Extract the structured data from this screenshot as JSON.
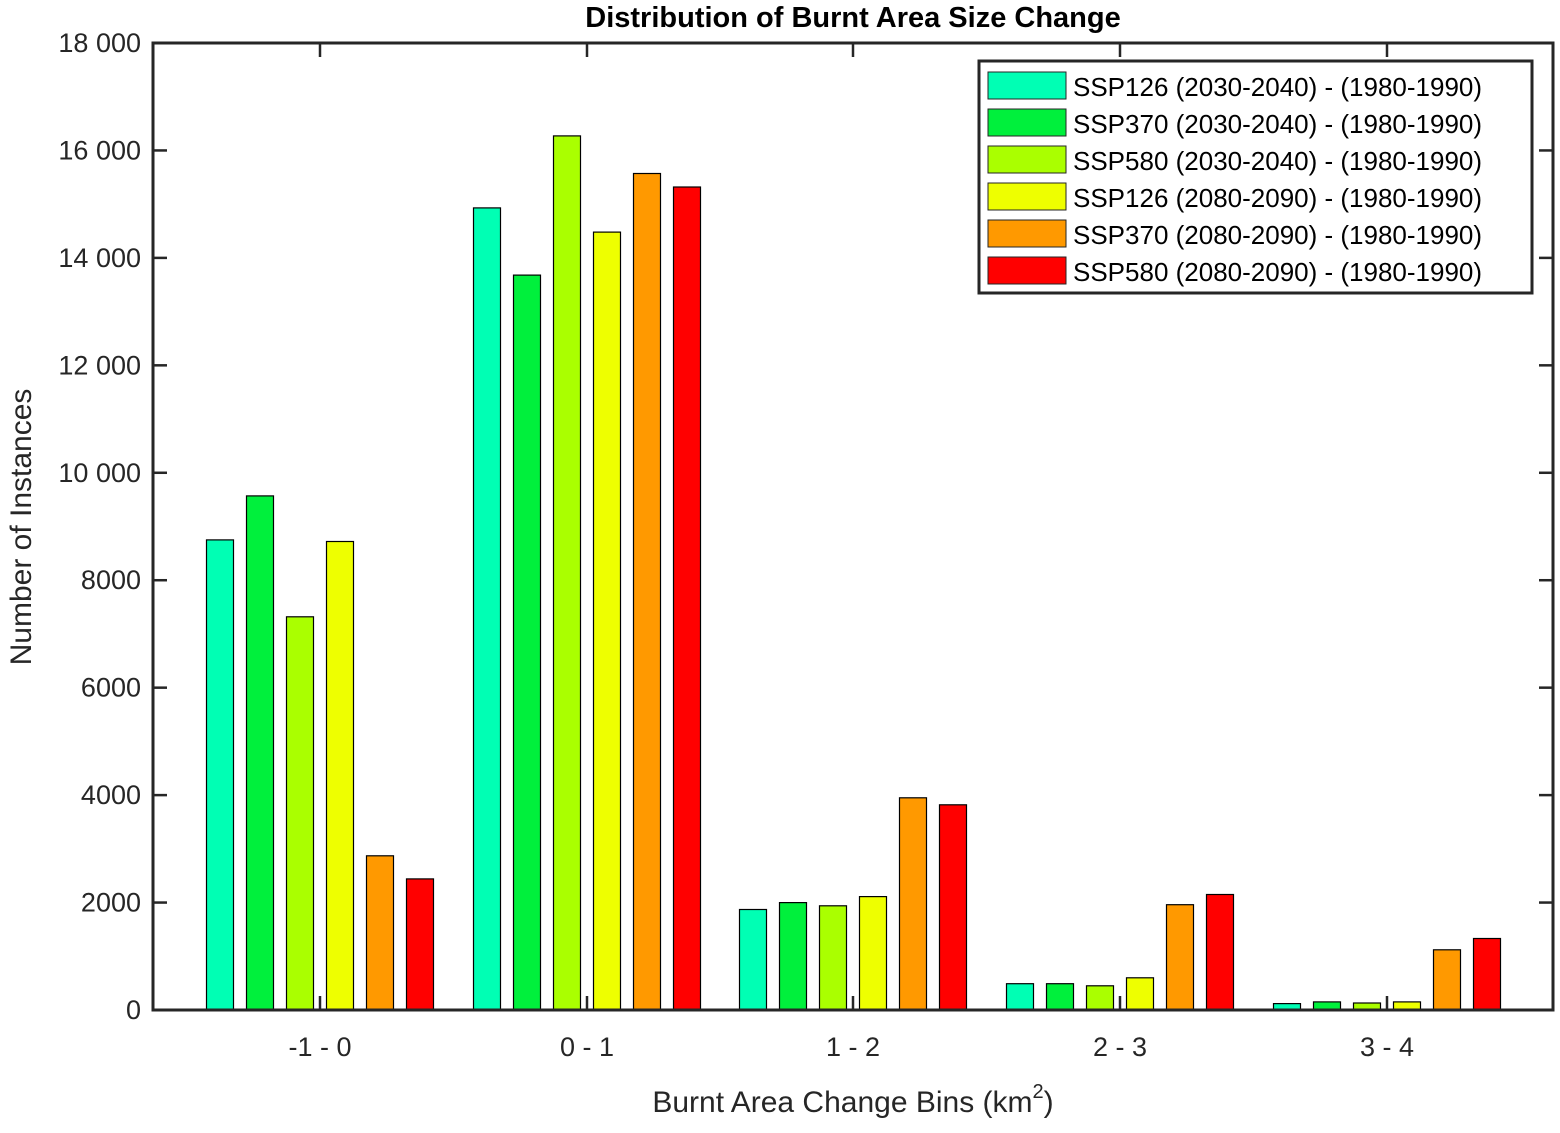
{
  "chart_data": {
    "type": "bar",
    "title": "Distribution of Burnt Area Size Change",
    "xlabel": "Burnt Area Change Bins (km",
    "xlabel_superscript": "2",
    "xlabel_suffix": ")",
    "ylabel": "Number of Instances",
    "ylim": [
      0,
      18000
    ],
    "yticks": [
      0,
      2000,
      4000,
      6000,
      8000,
      10000,
      12000,
      14000,
      16000,
      18000
    ],
    "ytick_labels": [
      "0",
      "2000",
      "4000",
      "6000",
      "8000",
      "10 000",
      "12 000",
      "14 000",
      "16 000",
      "18 000"
    ],
    "categories": [
      "-1 - 0",
      "0 - 1",
      "1 - 2",
      "2 - 3",
      "3 - 4"
    ],
    "legend_position": "top-right",
    "grid": false,
    "series": [
      {
        "name": "SSP126 (2030-2040) - (1980-1990)",
        "color": "#00FFB4",
        "values": [
          8750,
          14930,
          1870,
          490,
          120
        ]
      },
      {
        "name": "SSP370 (2030-2040) - (1980-1990)",
        "color": "#00F03C",
        "values": [
          9570,
          13680,
          2000,
          490,
          150
        ]
      },
      {
        "name": "SSP580 (2030-2040) - (1980-1990)",
        "color": "#AAFF00",
        "values": [
          7320,
          16270,
          1940,
          450,
          130
        ]
      },
      {
        "name": "SSP126 (2080-2090) - (1980-1990)",
        "color": "#EEFF00",
        "values": [
          8720,
          14480,
          2110,
          600,
          150
        ]
      },
      {
        "name": "SSP370 (2080-2090) - (1980-1990)",
        "color": "#FF9900",
        "values": [
          2870,
          15570,
          3950,
          1960,
          1120
        ]
      },
      {
        "name": "SSP580 (2080-2090) - (1980-1990)",
        "color": "#FF0000",
        "values": [
          2440,
          15320,
          3820,
          2150,
          1330
        ]
      }
    ]
  }
}
